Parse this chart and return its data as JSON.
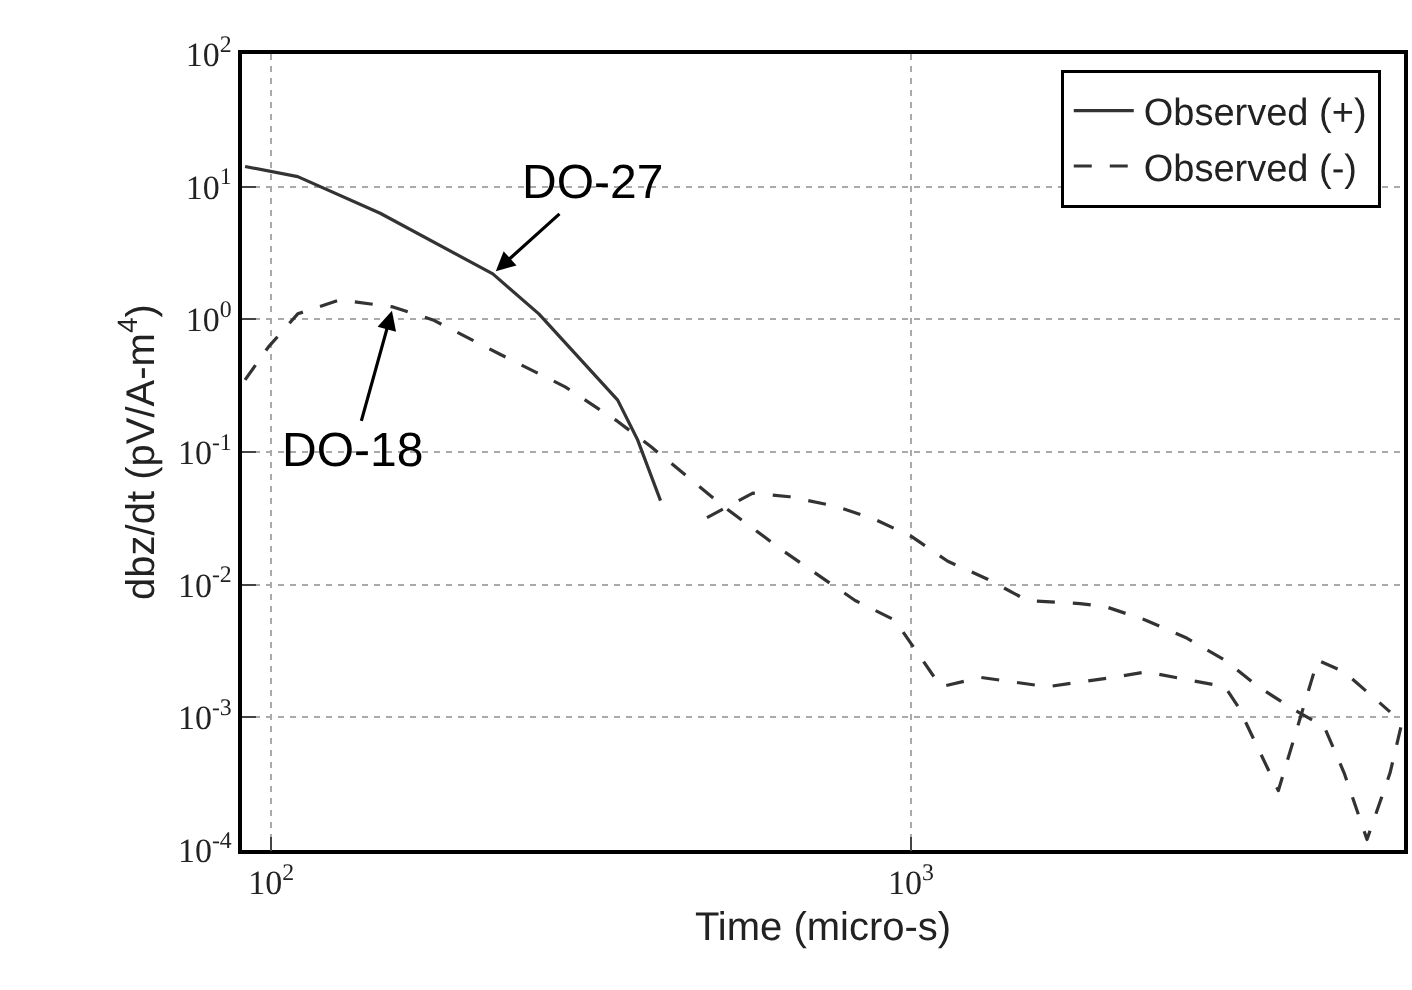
{
  "chart_data": {
    "type": "line",
    "xlabel": "Time (micro-s)",
    "ylabel": "dbz/dt (pV/A-m$^{4}$)",
    "log": "xy",
    "grid": true,
    "legend": "top right",
    "xlim": [
      90,
      5900
    ],
    "ylim": [
      0.0001,
      100
    ],
    "xticks": [
      {
        "value": 100,
        "label": "10$^{2}$"
      },
      {
        "value": 1000,
        "label": "10$^{3}$"
      }
    ],
    "yticks": [
      {
        "value": 0.0001,
        "label": "10$^{-4}$"
      },
      {
        "value": 0.001,
        "label": "10$^{-3}$"
      },
      {
        "value": 0.01,
        "label": "10$^{-2}$"
      },
      {
        "value": 0.1,
        "label": "10$^{-1}$"
      },
      {
        "value": 1,
        "label": "10$^{0}$"
      },
      {
        "value": 10,
        "label": "10$^{1}$"
      },
      {
        "value": 100,
        "label": "10$^{2}$"
      }
    ],
    "series": [
      {
        "name": "Observed (+)",
        "color": "#333333",
        "line_style": "solid",
        "x": [
          91,
          110,
          148,
          222,
          262,
          348,
          374,
          406
        ],
        "values": [
          14.2,
          11.9,
          6.3,
          2.2,
          1.1,
          0.246,
          0.123,
          0.043
        ]
      },
      {
        "name": "Observed (-)",
        "color": "#333333",
        "line_style": "dashed",
        "x": [
          91,
          99,
          110,
          128,
          155,
          179,
          227,
          288,
          348,
          392,
          509,
          631,
          818,
          944,
          1114,
          1285,
          1633,
          2071,
          2329,
          3097,
          3249,
          3753,
          4324,
          4757,
          5610
        ],
        "values": [
          0.35,
          0.62,
          1.1,
          1.4,
          1.24,
          0.99,
          0.55,
          0.31,
          0.17,
          0.11,
          0.039,
          0.018,
          0.0076,
          0.0054,
          0.0017,
          0.002,
          0.0017,
          0.002,
          0.0022,
          0.0017,
          0.0012,
          0.00028,
          0.0027,
          0.0022,
          0.0011
        ]
      },
      {
        "color": "#333333",
        "line_style": "dashed",
        "x": [
          480,
          566,
          646,
          763,
          879,
          1003,
          1142,
          1318,
          1520,
          1838,
          2020,
          2329,
          2687,
          3097,
          3490,
          4027,
          4427,
          4757,
          5164,
          5610,
          5865
        ],
        "values": [
          0.032,
          0.049,
          0.046,
          0.039,
          0.031,
          0.023,
          0.015,
          0.011,
          0.0076,
          0.0072,
          0.0068,
          0.0054,
          0.004,
          0.0027,
          0.0017,
          0.0011,
          0.00085,
          0.00038,
          0.00012,
          0.00038,
          0.00094
        ]
      }
    ],
    "annotations": [
      {
        "text": "DO-27",
        "x": 222,
        "y": 2.2
      },
      {
        "text": "DO-18",
        "x": 155,
        "y": 1.24
      }
    ]
  }
}
